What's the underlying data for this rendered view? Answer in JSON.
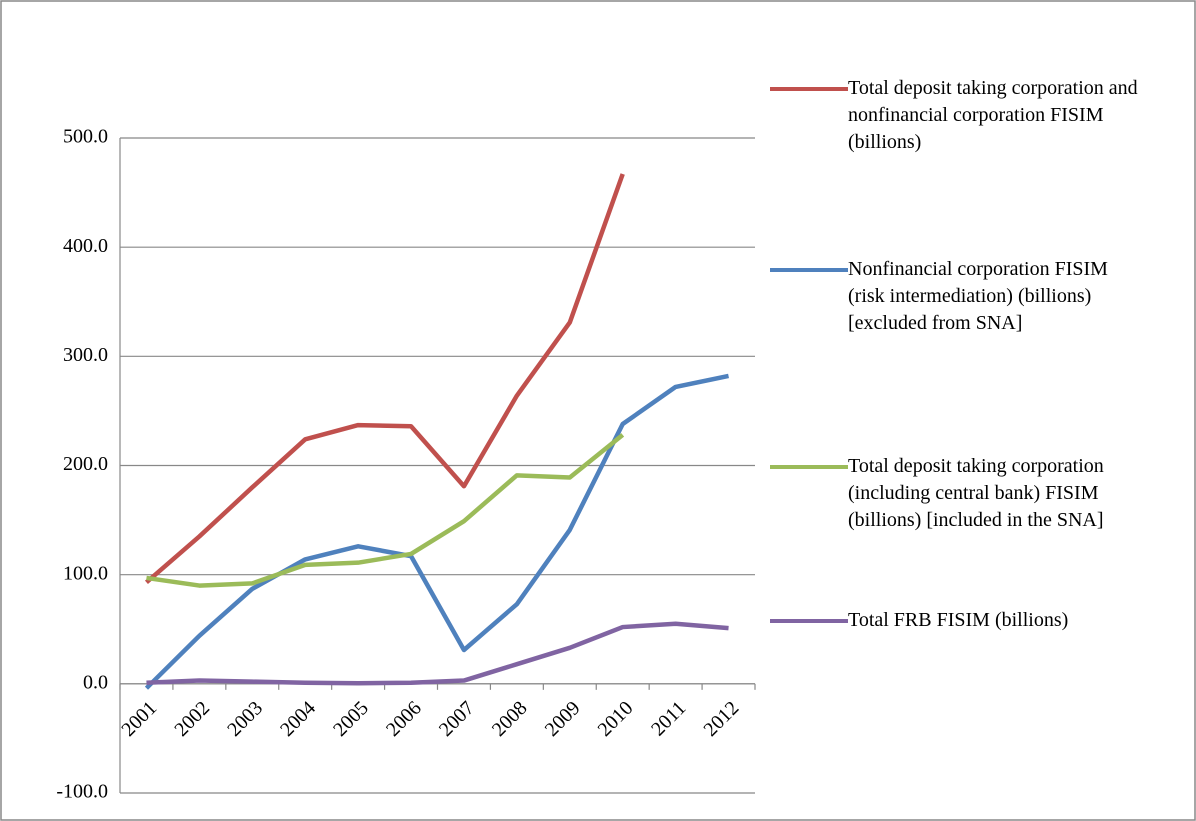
{
  "chart_data": {
    "type": "line",
    "categories": [
      "2001",
      "2002",
      "2003",
      "2004",
      "2005",
      "2006",
      "2007",
      "2008",
      "2009",
      "2010",
      "2011",
      "2012"
    ],
    "series": [
      {
        "name": "Total deposit taking corporation and nonfinancial corporation FISIM (billions)",
        "color": "#c0504d",
        "values": [
          93,
          135,
          180,
          224,
          237,
          236,
          181,
          264,
          331,
          467,
          null,
          null
        ]
      },
      {
        "name": "Nonfinancial corporation FISIM (risk intermediation) (billions) [excluded from SNA]",
        "color": "#4f81bd",
        "values": [
          -4,
          44,
          87,
          114,
          126,
          117,
          31,
          73,
          141,
          238,
          272,
          282
        ]
      },
      {
        "name": "Total deposit taking corporation (including central bank) FISIM (billions) [included in the SNA]",
        "color": "#9bbb59",
        "values": [
          97,
          90,
          92,
          109,
          111,
          119,
          149,
          191,
          189,
          228,
          null,
          null
        ]
      },
      {
        "name": "Total FRB FISIM (billions)",
        "color": "#8064a2",
        "values": [
          1,
          3,
          2,
          1,
          0.5,
          1,
          3,
          18,
          33,
          52,
          55,
          51
        ]
      }
    ],
    "ylim": [
      -100,
      500
    ],
    "yticks": [
      {
        "value": -100,
        "label": "-100.0"
      },
      {
        "value": 0,
        "label": "0.0"
      },
      {
        "value": 100,
        "label": "100.0"
      },
      {
        "value": 200,
        "label": "200.0"
      },
      {
        "value": 300,
        "label": "300.0"
      },
      {
        "value": 400,
        "label": "400.0"
      },
      {
        "value": 500,
        "label": "500.0"
      }
    ],
    "grid": true,
    "legend": "right"
  }
}
